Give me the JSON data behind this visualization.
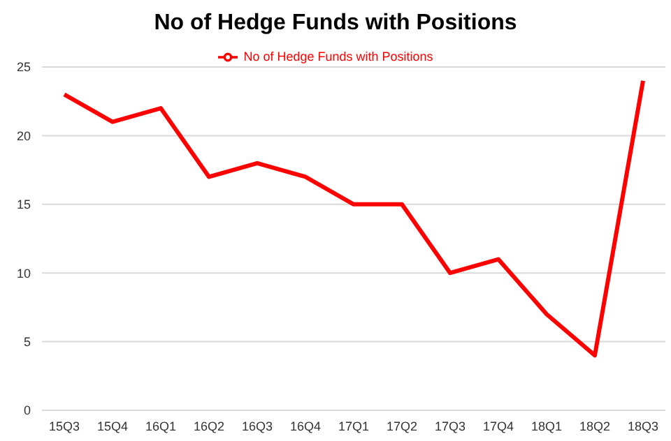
{
  "chart_data": {
    "type": "line",
    "title": "No of Hedge Funds with Positions",
    "categories": [
      "15Q3",
      "15Q4",
      "16Q1",
      "16Q2",
      "16Q3",
      "16Q4",
      "17Q1",
      "17Q2",
      "17Q3",
      "17Q4",
      "18Q1",
      "18Q2",
      "18Q3"
    ],
    "series": [
      {
        "name": "No of Hedge Funds with Positions",
        "color": "#ff0000",
        "values": [
          23,
          21,
          22,
          17,
          18,
          17,
          15,
          15,
          10,
          11,
          7,
          4,
          24
        ]
      }
    ],
    "ylim": [
      0,
      25
    ],
    "yticks": [
      0,
      5,
      10,
      15,
      20,
      25
    ],
    "grid": "y",
    "legend": "top",
    "marker": "none",
    "line_style": "solid"
  }
}
